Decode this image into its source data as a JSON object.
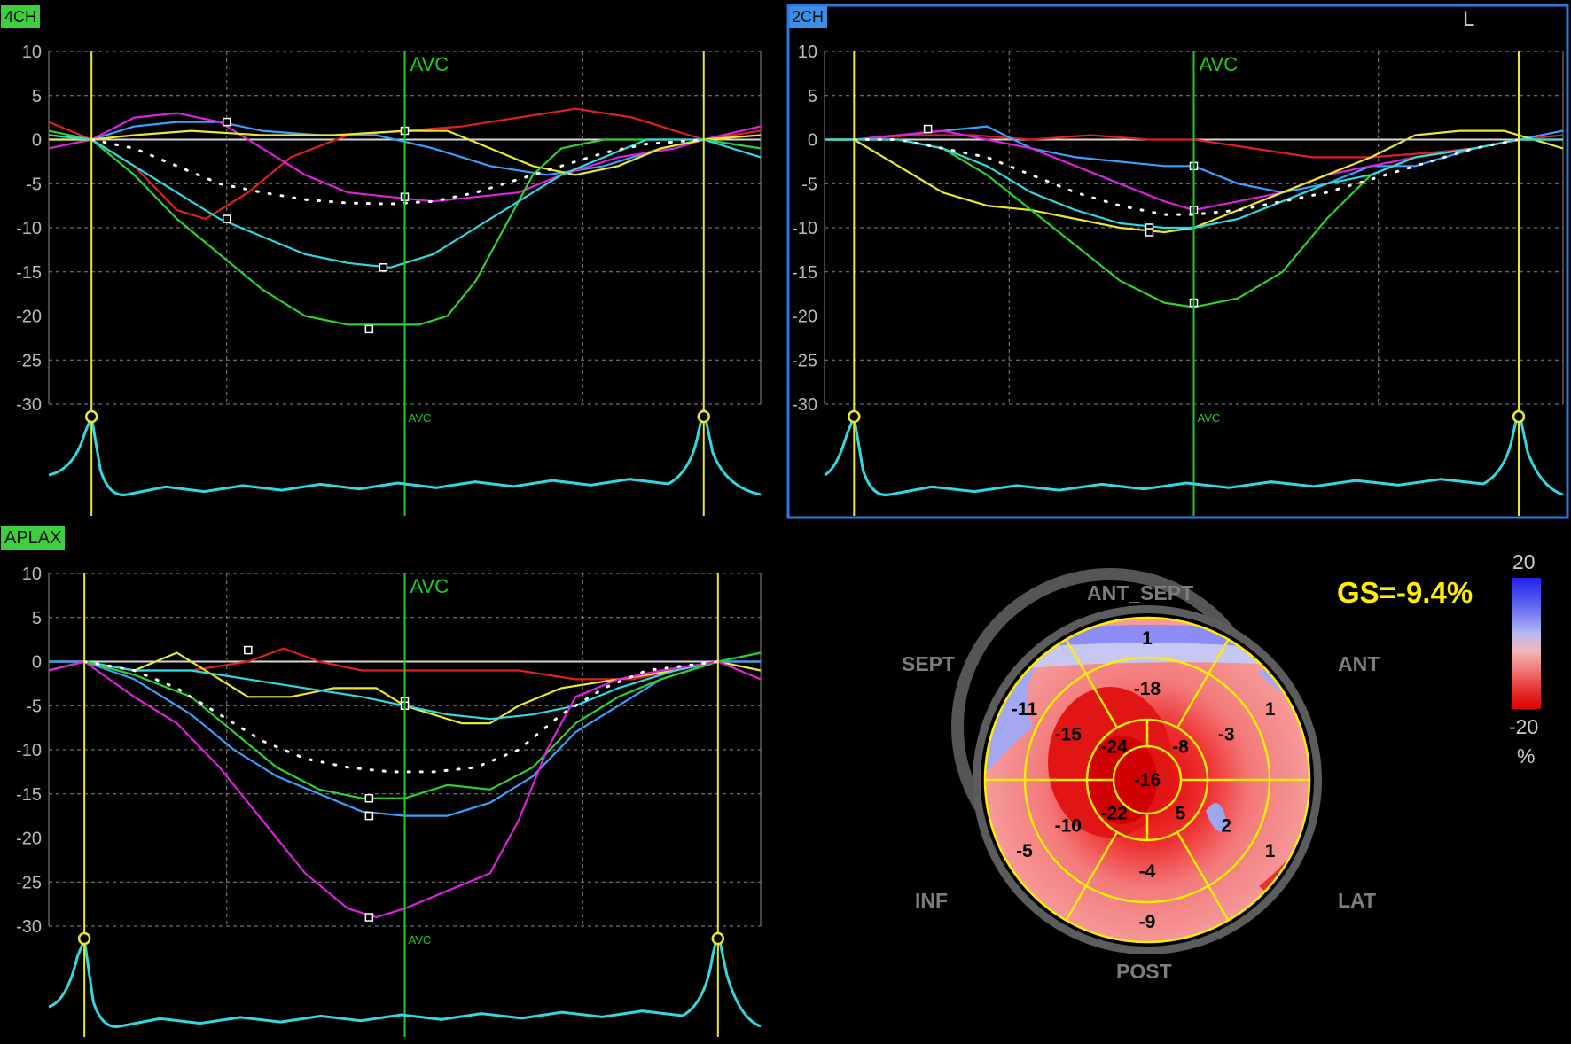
{
  "panels": [
    {
      "id": "4ch",
      "tag": "4CH",
      "tag_color": "#3ecf3e",
      "selected": false,
      "corner_label": "",
      "avc_label": "AVC"
    },
    {
      "id": "2ch",
      "tag": "2CH",
      "tag_color": "#3b8fe6",
      "selected": true,
      "corner_label": "L",
      "avc_label": "AVC"
    },
    {
      "id": "aplax",
      "tag": "APLAX",
      "tag_color": "#3ecf3e",
      "selected": false,
      "corner_label": "",
      "avc_label": "AVC"
    }
  ],
  "bullseye": {
    "gs_label": "GS=-9.4%",
    "labels": {
      "ant_sept": "ANT_SEPT",
      "sept": "SEPT",
      "ant": "ANT",
      "inf": "INF",
      "lat": "LAT",
      "post": "POST"
    },
    "scale": {
      "top": "20",
      "bottom": "-20",
      "unit": "%"
    },
    "segments": {
      "basal": [
        "1",
        "1",
        "1",
        "-9",
        "-5",
        "-11"
      ],
      "mid": [
        "-18",
        "-3",
        "2",
        "-4",
        "-10",
        "-15"
      ],
      "apical": [
        "-8",
        "5",
        "-22",
        "-24"
      ],
      "apex": "-16"
    }
  },
  "chart_data": [
    {
      "type": "line",
      "panel": "4CH",
      "ylim": [
        -30,
        10
      ],
      "yticks": [
        "10",
        "5",
        "0",
        "-5",
        "-10",
        "-15",
        "-20",
        "-25",
        "-30"
      ],
      "x_range": [
        0,
        100
      ],
      "markers_x": [
        6,
        92
      ],
      "avc_x": 50,
      "series": [
        {
          "color": "#e02020",
          "x": [
            0,
            6,
            12,
            18,
            22,
            28,
            34,
            42,
            50,
            58,
            66,
            74,
            82,
            88,
            92,
            100
          ],
          "y": [
            2,
            0,
            -3,
            -8,
            -9,
            -6,
            -2,
            0.5,
            1,
            1.5,
            2.5,
            3.5,
            2.5,
            1,
            0,
            1
          ]
        },
        {
          "color": "#3aa0ff",
          "x": [
            0,
            6,
            12,
            18,
            24,
            30,
            38,
            46,
            54,
            62,
            70,
            78,
            86,
            92,
            100
          ],
          "y": [
            0,
            0,
            1.5,
            2,
            2,
            1,
            0.5,
            0.5,
            -1,
            -3,
            -4,
            -3,
            -1,
            0,
            -1
          ]
        },
        {
          "color": "#e020e0",
          "x": [
            0,
            6,
            12,
            18,
            24,
            30,
            36,
            42,
            48,
            54,
            60,
            66,
            72,
            80,
            88,
            92,
            100
          ],
          "y": [
            -1,
            0,
            2.5,
            3,
            2,
            -1,
            -4,
            -6,
            -6.5,
            -7,
            -6.5,
            -6,
            -4,
            -2,
            -1,
            0,
            1.5
          ]
        },
        {
          "color": "#e8e830",
          "x": [
            0,
            6,
            12,
            20,
            30,
            40,
            50,
            56,
            62,
            68,
            74,
            80,
            86,
            92,
            100
          ],
          "y": [
            0,
            0,
            0.5,
            1,
            0.5,
            0.5,
            1,
            1,
            -1,
            -3,
            -4,
            -3,
            -1,
            0,
            0.5
          ]
        },
        {
          "color": "#30d030",
          "x": [
            0,
            6,
            12,
            18,
            24,
            30,
            36,
            42,
            48,
            52,
            56,
            60,
            64,
            68,
            72,
            78,
            84,
            88,
            92,
            100
          ],
          "y": [
            1,
            0,
            -4,
            -9,
            -13,
            -17,
            -20,
            -21,
            -21,
            -21,
            -20,
            -16,
            -10,
            -4,
            -1,
            0,
            0,
            0,
            0,
            -1
          ]
        },
        {
          "color": "#30d8e0",
          "x": [
            0,
            6,
            12,
            18,
            24,
            30,
            36,
            42,
            48,
            54,
            60,
            66,
            72,
            78,
            84,
            92,
            100
          ],
          "y": [
            0.5,
            0,
            -3,
            -6,
            -9,
            -11,
            -13,
            -14,
            -14.5,
            -13,
            -10,
            -7,
            -4,
            -2,
            0,
            0,
            -2
          ]
        },
        {
          "color": "#ffffff",
          "dotted": true,
          "x": [
            6,
            12,
            18,
            24,
            30,
            36,
            42,
            48,
            54,
            60,
            66,
            72,
            78,
            84,
            92
          ],
          "y": [
            0,
            -1,
            -3,
            -5,
            -6,
            -6.8,
            -7.2,
            -7.3,
            -7,
            -6,
            -4.5,
            -3,
            -1.5,
            -0.5,
            0
          ]
        }
      ],
      "points": [
        {
          "x": 25,
          "y": 2
        },
        {
          "x": 50,
          "y": 1
        },
        {
          "x": 25,
          "y": -9
        },
        {
          "x": 50,
          "y": -6.5
        },
        {
          "x": 47,
          "y": -14.5
        },
        {
          "x": 45,
          "y": -21.5
        }
      ]
    },
    {
      "type": "line",
      "panel": "2CH",
      "ylim": [
        -30,
        10
      ],
      "yticks": [
        "10",
        "5",
        "0",
        "-5",
        "-10",
        "-15",
        "-20",
        "-25",
        "-30"
      ],
      "x_range": [
        0,
        100
      ],
      "markers_x": [
        4,
        94
      ],
      "avc_x": 50,
      "series": [
        {
          "color": "#e02020",
          "x": [
            0,
            4,
            12,
            20,
            28,
            36,
            44,
            50,
            58,
            66,
            74,
            82,
            88,
            94,
            100
          ],
          "y": [
            0,
            0,
            0.5,
            0.5,
            0,
            0.5,
            0,
            0,
            -1,
            -2,
            -2,
            -1.5,
            -1,
            0,
            0.5
          ]
        },
        {
          "color": "#3aa0ff",
          "x": [
            0,
            4,
            10,
            16,
            22,
            28,
            34,
            40,
            46,
            50,
            56,
            62,
            68,
            74,
            80,
            88,
            94,
            100
          ],
          "y": [
            0,
            0,
            0.5,
            1,
            1.5,
            -1,
            -2,
            -2.5,
            -3,
            -3,
            -5,
            -6,
            -5,
            -3,
            -3,
            -1,
            0,
            1
          ]
        },
        {
          "color": "#e020e0",
          "x": [
            0,
            4,
            10,
            16,
            22,
            28,
            34,
            40,
            46,
            50,
            56,
            62,
            68,
            74,
            80,
            88,
            94,
            100
          ],
          "y": [
            0,
            0,
            0.5,
            1,
            0,
            -1,
            -3,
            -5,
            -7,
            -8,
            -7,
            -6,
            -4,
            -3,
            -2,
            -1,
            0,
            0
          ]
        },
        {
          "color": "#e8e830",
          "x": [
            0,
            4,
            10,
            16,
            22,
            28,
            34,
            40,
            46,
            50,
            56,
            62,
            68,
            74,
            80,
            86,
            92,
            100
          ],
          "y": [
            0,
            0,
            -3,
            -6,
            -7.5,
            -8,
            -9,
            -10,
            -10.5,
            -10,
            -8,
            -6,
            -4,
            -2,
            0.5,
            1,
            1,
            -1
          ]
        },
        {
          "color": "#30d030",
          "x": [
            0,
            4,
            10,
            16,
            22,
            28,
            34,
            40,
            46,
            50,
            56,
            62,
            68,
            74,
            80,
            88,
            94,
            100
          ],
          "y": [
            0,
            0,
            0,
            -1,
            -4,
            -8,
            -12,
            -16,
            -18.5,
            -19,
            -18,
            -15,
            -9,
            -4,
            -2,
            -1,
            0,
            0
          ]
        },
        {
          "color": "#30d8e0",
          "x": [
            0,
            4,
            10,
            16,
            22,
            28,
            34,
            40,
            46,
            50,
            56,
            62,
            68,
            74,
            80,
            88,
            94,
            100
          ],
          "y": [
            0,
            0,
            0,
            -1,
            -3,
            -6,
            -8,
            -9.5,
            -10,
            -10,
            -9,
            -7,
            -5,
            -4,
            -2,
            -1,
            0,
            0
          ]
        },
        {
          "color": "#ffffff",
          "dotted": true,
          "x": [
            4,
            10,
            16,
            22,
            28,
            34,
            40,
            46,
            50,
            56,
            62,
            68,
            74,
            80,
            88,
            94
          ],
          "y": [
            0,
            0,
            -1,
            -2,
            -4,
            -6,
            -7.5,
            -8.5,
            -8.5,
            -8,
            -7,
            -6,
            -4.5,
            -3,
            -1,
            0
          ]
        }
      ],
      "points": [
        {
          "x": 14,
          "y": 1.2
        },
        {
          "x": 50,
          "y": -3
        },
        {
          "x": 50,
          "y": -8
        },
        {
          "x": 44,
          "y": -10
        },
        {
          "x": 44,
          "y": -10.5
        },
        {
          "x": 50,
          "y": -18.5
        }
      ]
    },
    {
      "type": "line",
      "panel": "APLAX",
      "ylim": [
        -30,
        10
      ],
      "yticks": [
        "10",
        "5",
        "0",
        "-5",
        "-10",
        "-15",
        "-20",
        "-25",
        "-30"
      ],
      "x_range": [
        0,
        100
      ],
      "markers_x": [
        5,
        94
      ],
      "avc_x": 50,
      "series": [
        {
          "color": "#e02020",
          "x": [
            0,
            5,
            12,
            20,
            28,
            33,
            38,
            44,
            50,
            58,
            66,
            74,
            82,
            88,
            94,
            100
          ],
          "y": [
            -1,
            0,
            -1,
            -1,
            0,
            1.5,
            0,
            -1,
            -1,
            -1,
            -1,
            -2,
            -2,
            -1,
            0,
            0
          ]
        },
        {
          "color": "#e8e830",
          "x": [
            0,
            5,
            12,
            18,
            22,
            28,
            34,
            40,
            46,
            50,
            54,
            58,
            62,
            66,
            72,
            80,
            88,
            94,
            100
          ],
          "y": [
            0,
            0,
            -1,
            1,
            -1,
            -4,
            -4,
            -3,
            -3,
            -5,
            -6,
            -7,
            -7,
            -5,
            -3,
            -2,
            -1,
            0,
            -1
          ]
        },
        {
          "color": "#30d8e0",
          "x": [
            0,
            5,
            12,
            20,
            28,
            36,
            44,
            50,
            56,
            62,
            68,
            74,
            80,
            88,
            94,
            100
          ],
          "y": [
            0,
            0,
            -1,
            -1,
            -2,
            -3,
            -4,
            -5,
            -6,
            -6.5,
            -6,
            -5,
            -3,
            -1,
            0,
            0
          ]
        },
        {
          "color": "#3aa0ff",
          "x": [
            0,
            5,
            12,
            20,
            26,
            32,
            38,
            44,
            50,
            56,
            62,
            68,
            74,
            80,
            86,
            94,
            100
          ],
          "y": [
            0,
            0,
            -2,
            -6,
            -10,
            -13,
            -15,
            -17,
            -17.5,
            -17.5,
            -16,
            -13,
            -8,
            -5,
            -2,
            0,
            0
          ]
        },
        {
          "color": "#30d030",
          "x": [
            0,
            5,
            12,
            20,
            26,
            32,
            38,
            44,
            50,
            56,
            62,
            68,
            74,
            80,
            86,
            94,
            100
          ],
          "y": [
            -1,
            0,
            -1.5,
            -4,
            -8,
            -12,
            -14.5,
            -15.5,
            -15.5,
            -14,
            -14.5,
            -12,
            -7,
            -4,
            -2,
            0,
            1
          ]
        },
        {
          "color": "#e020e0",
          "x": [
            0,
            5,
            12,
            18,
            24,
            30,
            36,
            42,
            46,
            50,
            56,
            62,
            66,
            70,
            74,
            80,
            86,
            94,
            100
          ],
          "y": [
            -1,
            0,
            -4,
            -7,
            -12,
            -18,
            -24,
            -28,
            -29,
            -28,
            -26,
            -24,
            -18,
            -10,
            -4,
            -2,
            -1,
            0,
            -2
          ]
        },
        {
          "color": "#ffffff",
          "dotted": true,
          "x": [
            5,
            12,
            18,
            24,
            30,
            36,
            42,
            48,
            54,
            60,
            66,
            72,
            78,
            84,
            94
          ],
          "y": [
            0,
            -1,
            -3,
            -6,
            -9,
            -11,
            -12,
            -12.5,
            -12.5,
            -12,
            -10,
            -6,
            -3,
            -1,
            0
          ]
        }
      ],
      "points": [
        {
          "x": 28,
          "y": 1.3
        },
        {
          "x": 50,
          "y": -4.5
        },
        {
          "x": 50,
          "y": -5
        },
        {
          "x": 45,
          "y": -15.5
        },
        {
          "x": 45,
          "y": -17.5
        },
        {
          "x": 45,
          "y": -29
        }
      ]
    }
  ]
}
